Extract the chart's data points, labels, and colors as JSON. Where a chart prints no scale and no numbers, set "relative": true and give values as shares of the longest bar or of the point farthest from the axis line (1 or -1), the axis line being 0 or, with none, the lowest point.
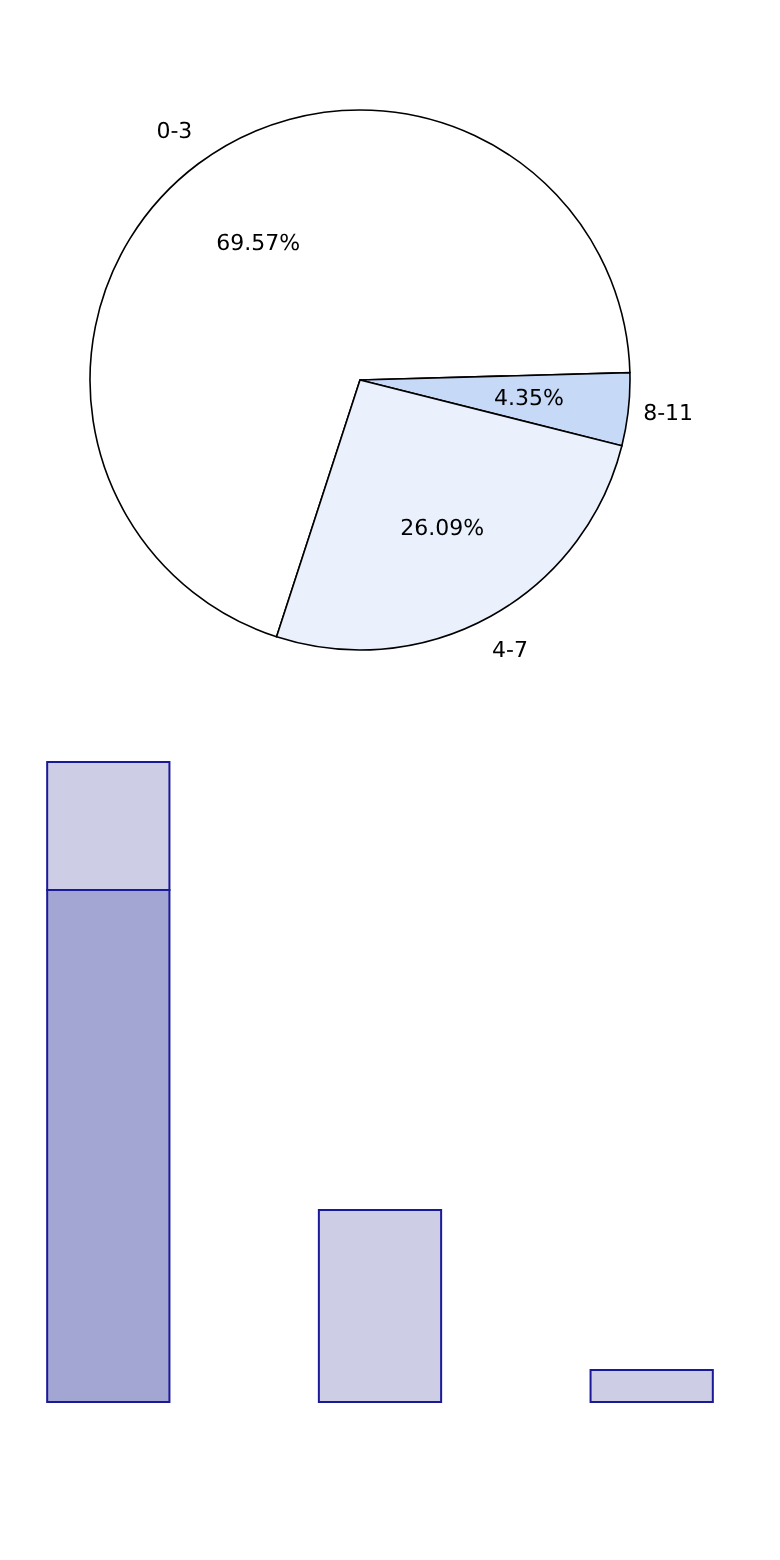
{
  "chart_data": [
    {
      "type": "pie",
      "categories": [
        "0-3",
        "8-11",
        "4-7"
      ],
      "values": [
        69.57,
        4.35,
        26.09
      ],
      "colors": [
        "#ffffff",
        "#c6d9f7",
        "#eaf1fd"
      ],
      "value_labels": [
        "69.57%",
        "4.35%",
        "26.09%"
      ]
    },
    {
      "type": "bar",
      "relative": true,
      "stacked": true,
      "categories": [
        null,
        null,
        null
      ],
      "series": [
        {
          "color": "#a3a6d2",
          "values": [
            0.8,
            null,
            null
          ]
        },
        {
          "color": "#cdcde5",
          "values": [
            0.2,
            0.3,
            0.05
          ]
        }
      ]
    }
  ]
}
